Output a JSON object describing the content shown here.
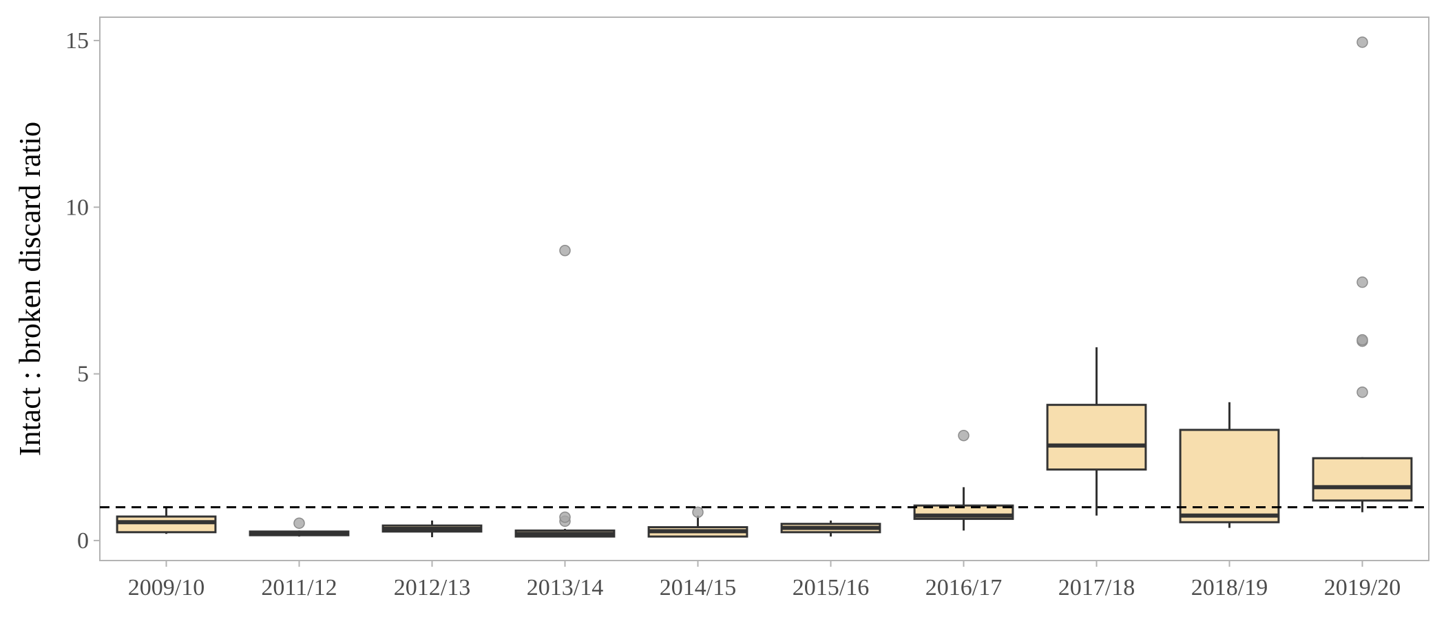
{
  "chart_data": {
    "type": "boxplot",
    "title": "",
    "xlabel": "",
    "ylabel": "Intact : broken discard ratio",
    "ylim": [
      -0.6,
      15.7
    ],
    "yticks": [
      0,
      5,
      10,
      15
    ],
    "ytick_labels": [
      "0",
      "5",
      "10",
      "15"
    ],
    "reference_line": {
      "y": 1.0,
      "style": "dashed",
      "color": "#000000"
    },
    "colors": {
      "box_fill": "#F7DEAE",
      "box_stroke": "#333333",
      "outlier_fill": "#a8a8a8",
      "frame": "#b3b3b3"
    },
    "grid": false,
    "legend": "none",
    "categories": [
      "2009/10",
      "2011/12",
      "2012/13",
      "2013/14",
      "2014/15",
      "2015/16",
      "2016/17",
      "2017/18",
      "2018/19",
      "2019/20"
    ],
    "boxes": [
      {
        "category": "2009/10",
        "whisker_low": 0.2,
        "q1": 0.25,
        "median": 0.55,
        "q3": 0.72,
        "whisker_high": 1.0,
        "outliers": []
      },
      {
        "category": "2011/12",
        "whisker_low": 0.12,
        "q1": 0.16,
        "median": 0.2,
        "q3": 0.27,
        "whisker_high": 0.3,
        "outliers": [
          0.52
        ]
      },
      {
        "category": "2012/13",
        "whisker_low": 0.1,
        "q1": 0.27,
        "median": 0.35,
        "q3": 0.45,
        "whisker_high": 0.6,
        "outliers": []
      },
      {
        "category": "2013/14",
        "whisker_low": 0.1,
        "q1": 0.12,
        "median": 0.2,
        "q3": 0.3,
        "whisker_high": 0.35,
        "outliers": [
          0.58,
          0.7,
          8.7
        ]
      },
      {
        "category": "2014/15",
        "whisker_low": 0.1,
        "q1": 0.12,
        "median": 0.28,
        "q3": 0.4,
        "whisker_high": 0.75,
        "outliers": [
          0.85
        ]
      },
      {
        "category": "2015/16",
        "whisker_low": 0.12,
        "q1": 0.25,
        "median": 0.38,
        "q3": 0.5,
        "whisker_high": 0.6,
        "outliers": []
      },
      {
        "category": "2016/17",
        "whisker_low": 0.3,
        "q1": 0.65,
        "median": 0.75,
        "q3": 1.05,
        "whisker_high": 1.6,
        "outliers": [
          3.15
        ]
      },
      {
        "category": "2017/18",
        "whisker_low": 0.75,
        "q1": 2.13,
        "median": 2.85,
        "q3": 4.07,
        "whisker_high": 5.8,
        "outliers": []
      },
      {
        "category": "2018/19",
        "whisker_low": 0.38,
        "q1": 0.55,
        "median": 0.75,
        "q3": 3.32,
        "whisker_high": 4.15,
        "outliers": []
      },
      {
        "category": "2019/20",
        "whisker_low": 0.85,
        "q1": 1.2,
        "median": 1.6,
        "q3": 2.47,
        "whisker_high": 2.5,
        "outliers": [
          4.45,
          5.98,
          6.02,
          7.75,
          14.95
        ]
      }
    ]
  }
}
